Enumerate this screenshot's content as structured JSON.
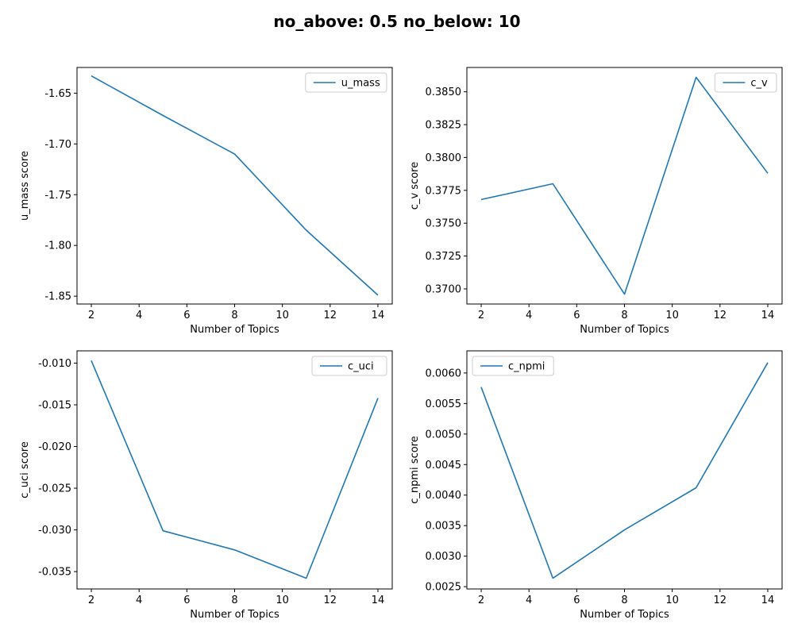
{
  "figure": {
    "title": "no_above: 0.5 no_below: 10",
    "line_color": "#1f77b4"
  },
  "chart_data": [
    {
      "type": "line",
      "xlabel": "Number of Topics",
      "ylabel": "u_mass score",
      "legend": "top-right",
      "grid": false,
      "xlim": [
        1.4,
        14.6
      ],
      "ylim": [
        -1.8577,
        -1.6247
      ],
      "xticks": [
        "2",
        "4",
        "6",
        "8",
        "10",
        "12",
        "14"
      ],
      "yticks": [
        "-1.85",
        "-1.80",
        "-1.75",
        "-1.70",
        "-1.65"
      ],
      "series": [
        {
          "name": "u_mass",
          "x": [
            2,
            5,
            8,
            11,
            14
          ],
          "y": [
            -1.633,
            -1.672,
            -1.71,
            -1.785,
            -1.849
          ]
        }
      ]
    },
    {
      "type": "line",
      "xlabel": "Number of Topics",
      "ylabel": "c_v score",
      "legend": "top-right",
      "grid": false,
      "xlim": [
        1.4,
        14.6
      ],
      "ylim": [
        0.36885,
        0.38685
      ],
      "xticks": [
        "2",
        "4",
        "6",
        "8",
        "10",
        "12",
        "14"
      ],
      "yticks": [
        "0.3700",
        "0.3725",
        "0.3750",
        "0.3775",
        "0.3800",
        "0.3825",
        "0.3850"
      ],
      "series": [
        {
          "name": "c_v",
          "x": [
            2,
            5,
            8,
            11,
            14
          ],
          "y": [
            0.3768,
            0.378,
            0.3696,
            0.3861,
            0.3788
          ]
        }
      ]
    },
    {
      "type": "line",
      "xlabel": "Number of Topics",
      "ylabel": "c_uci score",
      "legend": "top-right",
      "grid": false,
      "xlim": [
        1.4,
        14.6
      ],
      "ylim": [
        -0.03708,
        -0.00853
      ],
      "xticks": [
        "2",
        "4",
        "6",
        "8",
        "10",
        "12",
        "14"
      ],
      "yticks": [
        "-0.035",
        "-0.030",
        "-0.025",
        "-0.020",
        "-0.015",
        "-0.010"
      ],
      "series": [
        {
          "name": "c_uci",
          "x": [
            2,
            5,
            8,
            11,
            14
          ],
          "y": [
            -0.0097,
            -0.0301,
            -0.0324,
            -0.0358,
            -0.0142
          ]
        }
      ]
    },
    {
      "type": "line",
      "xlabel": "Number of Topics",
      "ylabel": "c_npmi score",
      "legend": "top-left",
      "grid": false,
      "xlim": [
        1.4,
        14.6
      ],
      "ylim": [
        0.0024627,
        0.0063627
      ],
      "xticks": [
        "2",
        "4",
        "6",
        "8",
        "10",
        "12",
        "14"
      ],
      "yticks": [
        "0.0025",
        "0.0030",
        "0.0035",
        "0.0040",
        "0.0045",
        "0.0050",
        "0.0055",
        "0.0060"
      ],
      "series": [
        {
          "name": "c_npmi",
          "x": [
            2,
            5,
            8,
            11,
            14
          ],
          "y": [
            0.00577,
            0.00264,
            0.00343,
            0.00412,
            0.00617
          ]
        }
      ]
    }
  ]
}
